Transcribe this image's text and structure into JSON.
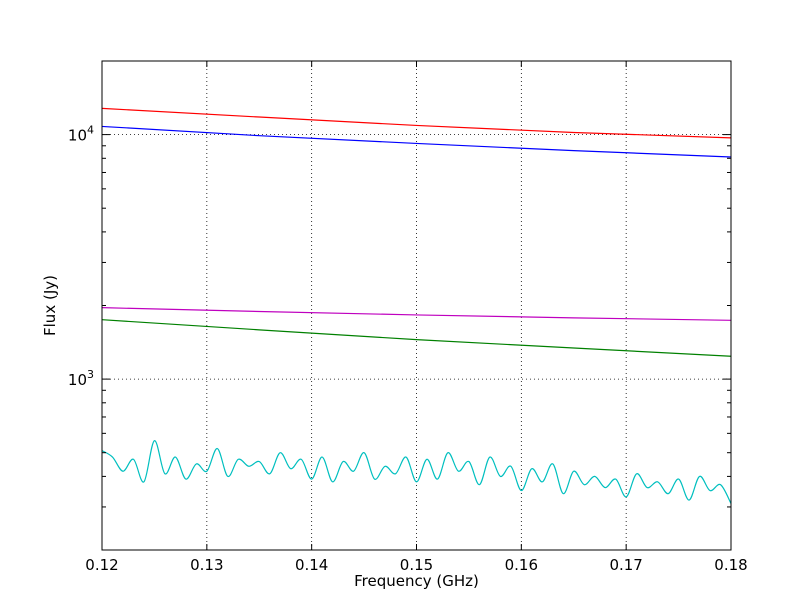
{
  "chart_data": {
    "type": "line",
    "title": "",
    "xlabel": "Frequency (GHz)",
    "ylabel": "Flux (Jy)",
    "xlim": [
      0.12,
      0.18
    ],
    "ylim": [
      200,
      20000
    ],
    "yscale": "log",
    "grid": true,
    "x_ticks": [
      {
        "value": 0.12,
        "label": "0.12"
      },
      {
        "value": 0.13,
        "label": "0.13"
      },
      {
        "value": 0.14,
        "label": "0.14"
      },
      {
        "value": 0.15,
        "label": "0.15"
      },
      {
        "value": 0.16,
        "label": "0.16"
      },
      {
        "value": 0.17,
        "label": "0.17"
      },
      {
        "value": 0.18,
        "label": "0.18"
      }
    ],
    "y_ticks": [
      {
        "value": 1000,
        "base": "10",
        "exp": "3"
      },
      {
        "value": 10000,
        "base": "10",
        "exp": "4"
      }
    ],
    "series": [
      {
        "color": "#ff0000",
        "x": [
          0.12,
          0.135,
          0.15,
          0.165,
          0.18
        ],
        "y": [
          12800,
          11800,
          10900,
          10200,
          9700
        ]
      },
      {
        "color": "#0000ff",
        "x": [
          0.12,
          0.135,
          0.15,
          0.165,
          0.18
        ],
        "y": [
          10800,
          9900,
          9200,
          8600,
          8100
        ]
      },
      {
        "color": "#bf00bf",
        "x": [
          0.12,
          0.135,
          0.15,
          0.165,
          0.18
        ],
        "y": [
          1960,
          1890,
          1830,
          1780,
          1740
        ]
      },
      {
        "color": "#008000",
        "x": [
          0.12,
          0.135,
          0.15,
          0.165,
          0.18
        ],
        "y": [
          1750,
          1590,
          1450,
          1340,
          1240
        ]
      },
      {
        "color": "#00bfbf",
        "x": [
          0.12,
          0.121,
          0.122,
          0.123,
          0.124,
          0.125,
          0.126,
          0.127,
          0.128,
          0.129,
          0.13,
          0.131,
          0.132,
          0.133,
          0.134,
          0.135,
          0.136,
          0.137,
          0.138,
          0.139,
          0.14,
          0.141,
          0.142,
          0.143,
          0.144,
          0.145,
          0.146,
          0.147,
          0.148,
          0.149,
          0.15,
          0.151,
          0.152,
          0.153,
          0.154,
          0.155,
          0.156,
          0.157,
          0.158,
          0.159,
          0.16,
          0.161,
          0.162,
          0.163,
          0.164,
          0.165,
          0.166,
          0.167,
          0.168,
          0.169,
          0.17,
          0.171,
          0.172,
          0.173,
          0.174,
          0.175,
          0.176,
          0.177,
          0.178,
          0.179,
          0.18
        ],
        "y": [
          510,
          480,
          420,
          470,
          380,
          560,
          410,
          480,
          390,
          450,
          420,
          520,
          400,
          470,
          440,
          460,
          410,
          500,
          430,
          470,
          390,
          480,
          380,
          460,
          420,
          500,
          390,
          440,
          410,
          480,
          380,
          470,
          390,
          500,
          420,
          460,
          370,
          480,
          400,
          440,
          350,
          430,
          380,
          450,
          340,
          420,
          370,
          400,
          360,
          390,
          330,
          410,
          360,
          380,
          340,
          390,
          320,
          400,
          350,
          370,
          310
        ]
      }
    ]
  }
}
